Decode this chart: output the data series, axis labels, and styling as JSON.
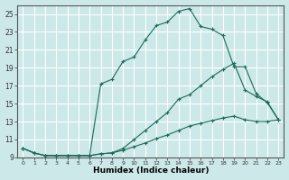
{
  "title": "",
  "xlabel": "Humidex (Indice chaleur)",
  "ylabel": "",
  "bg_color": "#cce8e8",
  "line_color": "#1a6b5a",
  "grid_color": "#ffffff",
  "xlim": [
    -0.5,
    23.5
  ],
  "ylim": [
    9,
    26
  ],
  "yticks": [
    9,
    11,
    13,
    15,
    17,
    19,
    21,
    23,
    25
  ],
  "xticks": [
    0,
    1,
    2,
    3,
    4,
    5,
    6,
    7,
    8,
    9,
    10,
    11,
    12,
    13,
    14,
    15,
    16,
    17,
    18,
    19,
    20,
    21,
    22,
    23
  ],
  "series": [
    {
      "x": [
        0,
        1,
        2,
        3,
        4,
        5,
        6,
        7,
        8,
        9,
        10,
        11,
        12,
        13,
        14,
        15,
        16,
        17,
        18,
        19,
        20,
        21,
        22,
        23
      ],
      "y": [
        10.0,
        9.5,
        9.2,
        9.2,
        9.2,
        9.2,
        9.2,
        17.2,
        17.7,
        19.7,
        20.2,
        22.1,
        23.7,
        24.1,
        25.3,
        25.6,
        23.6,
        23.3,
        22.6,
        19.1,
        19.1,
        16.1,
        15.1,
        13.2
      ]
    },
    {
      "x": [
        0,
        1,
        2,
        3,
        4,
        5,
        6,
        7,
        8,
        9,
        10,
        11,
        12,
        13,
        14,
        15,
        16,
        17,
        18,
        19,
        20,
        21,
        22,
        23
      ],
      "y": [
        10.0,
        9.5,
        9.2,
        9.2,
        9.2,
        9.2,
        9.2,
        9.4,
        9.5,
        10.0,
        11.0,
        12.0,
        13.0,
        14.0,
        15.5,
        16.0,
        17.0,
        18.0,
        18.8,
        19.5,
        16.5,
        15.8,
        15.2,
        13.2
      ]
    },
    {
      "x": [
        0,
        1,
        2,
        3,
        4,
        5,
        6,
        7,
        8,
        9,
        10,
        11,
        12,
        13,
        14,
        15,
        16,
        17,
        18,
        19,
        20,
        21,
        22,
        23
      ],
      "y": [
        10.0,
        9.5,
        9.2,
        9.2,
        9.2,
        9.2,
        9.2,
        9.4,
        9.5,
        9.8,
        10.2,
        10.6,
        11.1,
        11.5,
        12.0,
        12.5,
        12.8,
        13.1,
        13.4,
        13.6,
        13.2,
        13.0,
        13.0,
        13.2
      ]
    }
  ]
}
